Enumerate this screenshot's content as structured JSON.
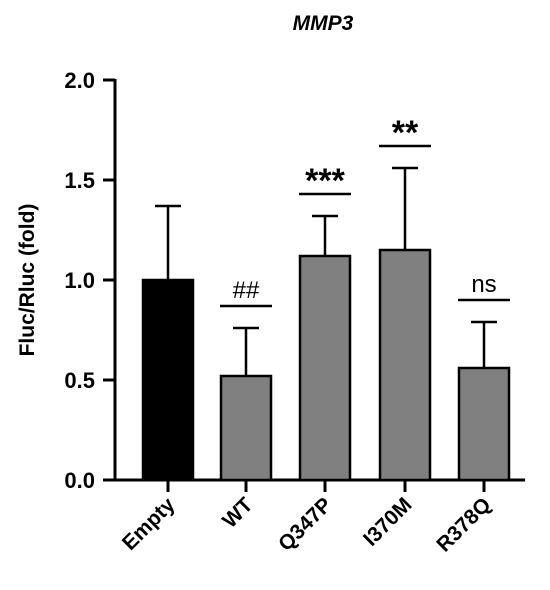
{
  "chart_data": {
    "type": "bar",
    "title": "MMP3",
    "xlabel": "",
    "ylabel": "Fluc/Rluc (fold)",
    "ylim": [
      0,
      2.0
    ],
    "yticks": [
      "0.0",
      "0.5",
      "1.0",
      "1.5",
      "2.0"
    ],
    "categories": [
      "Empty",
      "WT",
      "Q347P",
      "I370M",
      "R378Q"
    ],
    "values": [
      1.0,
      0.52,
      1.12,
      1.15,
      0.56
    ],
    "error_upper": [
      1.37,
      0.76,
      1.32,
      1.56,
      0.79
    ],
    "significance": [
      "",
      "##",
      "***",
      "**",
      "ns"
    ],
    "bar_colors": [
      "#000000",
      "#808080",
      "#808080",
      "#808080",
      "#808080"
    ],
    "grid": false,
    "legend": "none"
  }
}
